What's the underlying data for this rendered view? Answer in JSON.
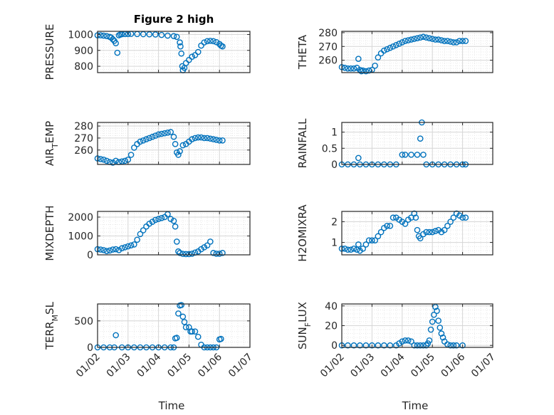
{
  "figure_title": "Figure 2 high",
  "colors": {
    "marker": "#0072BD",
    "grid": "#d6d6d6",
    "axis": "#262626"
  },
  "xaxis": {
    "label": "Time",
    "tick_labels": [
      "01/02",
      "01/03",
      "01/04",
      "01/05",
      "01/06",
      "01/07"
    ],
    "range": [
      0,
      5
    ]
  },
  "chart_data": [
    {
      "id": "pressure",
      "type": "scatter",
      "title": "Figure 2 high",
      "ylabel": "PRESSURE",
      "ylim": [
        760,
        1020
      ],
      "yticks": [
        800,
        900,
        1000
      ],
      "ytick_labels": [
        "800",
        "900",
        "1000"
      ],
      "grid": true,
      "marker": "circle-open",
      "x": [
        0,
        0.1,
        0.2,
        0.3,
        0.4,
        0.45,
        0.5,
        0.55,
        0.6,
        0.65,
        0.7,
        0.75,
        0.8,
        0.9,
        1.0,
        1.1,
        1.3,
        1.5,
        1.7,
        1.9,
        2.1,
        2.3,
        2.5,
        2.6,
        2.7,
        2.72,
        2.75,
        2.78,
        2.8,
        2.85,
        2.9,
        3.0,
        3.1,
        3.2,
        3.3,
        3.4,
        3.5,
        3.6,
        3.7,
        3.8,
        3.9,
        4.0,
        4.05,
        4.1
      ],
      "y": [
        995,
        995,
        993,
        990,
        985,
        980,
        970,
        960,
        945,
        885,
        995,
        1000,
        1002,
        1003,
        1003,
        1004,
        1003,
        1002,
        1001,
        1000,
        997,
        993,
        990,
        985,
        950,
        925,
        880,
        800,
        775,
        790,
        820,
        840,
        860,
        870,
        890,
        930,
        950,
        958,
        960,
        958,
        952,
        940,
        930,
        925
      ]
    },
    {
      "id": "theta",
      "type": "scatter",
      "ylabel": "THETA",
      "ylim": [
        251,
        281
      ],
      "yticks": [
        260,
        270,
        280
      ],
      "ytick_labels": [
        "260",
        "270",
        "280"
      ],
      "grid": true,
      "marker": "circle-open",
      "x": [
        0,
        0.1,
        0.2,
        0.3,
        0.4,
        0.5,
        0.55,
        0.6,
        0.65,
        0.7,
        0.8,
        0.9,
        1.0,
        1.1,
        1.2,
        1.3,
        1.4,
        1.5,
        1.6,
        1.7,
        1.8,
        1.9,
        2.0,
        2.1,
        2.2,
        2.3,
        2.4,
        2.5,
        2.6,
        2.7,
        2.8,
        2.9,
        3.0,
        3.1,
        3.2,
        3.3,
        3.4,
        3.5,
        3.6,
        3.7,
        3.8,
        3.9,
        4.0,
        4.1
      ],
      "y": [
        255,
        254.5,
        254,
        254,
        254,
        254.5,
        261,
        253,
        252,
        252.5,
        252,
        252.5,
        253,
        256,
        262,
        265,
        267,
        268,
        269,
        270,
        271,
        272,
        273,
        274,
        274.5,
        275,
        275.5,
        276,
        276.5,
        277,
        276.5,
        276,
        275.5,
        275,
        275,
        274.5,
        274,
        274,
        273.5,
        273,
        273,
        274,
        274,
        274
      ]
    },
    {
      "id": "air_temp",
      "type": "scatter",
      "ylabel": "AIR_TEMP",
      "ylim": [
        248,
        283
      ],
      "yticks": [
        260,
        270,
        280
      ],
      "ytick_labels": [
        "260",
        "270",
        "280"
      ],
      "grid": true,
      "marker": "circle-open",
      "x": [
        0,
        0.1,
        0.2,
        0.3,
        0.4,
        0.5,
        0.6,
        0.7,
        0.8,
        0.9,
        1.0,
        1.1,
        1.2,
        1.3,
        1.4,
        1.5,
        1.6,
        1.7,
        1.8,
        1.9,
        2.0,
        2.1,
        2.2,
        2.3,
        2.4,
        2.5,
        2.55,
        2.6,
        2.65,
        2.7,
        2.8,
        2.9,
        3.0,
        3.1,
        3.2,
        3.3,
        3.4,
        3.5,
        3.6,
        3.7,
        3.8,
        3.9,
        4.0,
        4.1
      ],
      "y": [
        253,
        252.5,
        252,
        251,
        250,
        249.5,
        251,
        250,
        250.5,
        251,
        252,
        256,
        262,
        265,
        267,
        268,
        269,
        270,
        271,
        272,
        273,
        273.5,
        274,
        274.5,
        275,
        271,
        265,
        258,
        256,
        259,
        264,
        265,
        267,
        269,
        270,
        270.5,
        270.5,
        270,
        270,
        269.5,
        269,
        268.5,
        268,
        268
      ]
    },
    {
      "id": "rainfall",
      "type": "scatter",
      "ylabel": "RAINFALL",
      "ylim": [
        0,
        1.3
      ],
      "yticks": [
        0,
        0.5,
        1
      ],
      "ytick_labels": [
        "0",
        "0.5",
        "1"
      ],
      "grid": true,
      "marker": "circle-open",
      "x": [
        0,
        0.2,
        0.4,
        0.55,
        0.6,
        0.8,
        1.0,
        1.2,
        1.4,
        1.6,
        1.8,
        2.0,
        2.1,
        2.3,
        2.5,
        2.6,
        2.65,
        2.7,
        2.8,
        3.0,
        3.2,
        3.4,
        3.6,
        3.8,
        4.0,
        4.1
      ],
      "y": [
        0,
        0,
        0,
        0.2,
        0,
        0,
        0,
        0,
        0,
        0,
        0,
        0.3,
        0.3,
        0.3,
        0.3,
        0.8,
        1.3,
        0.3,
        0,
        0,
        0,
        0,
        0,
        0,
        0,
        0
      ]
    },
    {
      "id": "mixdepth",
      "type": "scatter",
      "ylabel": "MIXDEPTH",
      "ylim": [
        0,
        2300
      ],
      "yticks": [
        0,
        1000,
        2000
      ],
      "ytick_labels": [
        "0",
        "1000",
        "2000"
      ],
      "grid": true,
      "marker": "circle-open",
      "x": [
        0,
        0.1,
        0.2,
        0.3,
        0.4,
        0.5,
        0.6,
        0.7,
        0.8,
        0.9,
        1.0,
        1.1,
        1.2,
        1.3,
        1.4,
        1.5,
        1.6,
        1.7,
        1.8,
        1.9,
        2.0,
        2.1,
        2.2,
        2.3,
        2.4,
        2.5,
        2.55,
        2.6,
        2.65,
        2.7,
        2.8,
        2.9,
        3.0,
        3.1,
        3.2,
        3.3,
        3.4,
        3.5,
        3.6,
        3.7,
        3.8,
        3.9,
        4.0,
        4.1
      ],
      "y": [
        300,
        280,
        250,
        200,
        230,
        280,
        300,
        250,
        350,
        400,
        450,
        500,
        550,
        800,
        1100,
        1300,
        1500,
        1650,
        1750,
        1850,
        1900,
        1950,
        2000,
        2150,
        1900,
        1800,
        1500,
        700,
        180,
        100,
        50,
        40,
        40,
        60,
        120,
        180,
        300,
        400,
        500,
        700,
        100,
        60,
        60,
        100
      ]
    },
    {
      "id": "h2omixra",
      "type": "scatter",
      "ylabel": "H2OMIXRA",
      "ylim": [
        0.4,
        2.5
      ],
      "yticks": [
        1,
        2
      ],
      "ytick_labels": [
        "1",
        "2"
      ],
      "grid": true,
      "marker": "circle-open",
      "x": [
        0,
        0.1,
        0.2,
        0.3,
        0.4,
        0.5,
        0.55,
        0.6,
        0.7,
        0.8,
        0.9,
        1.0,
        1.1,
        1.2,
        1.3,
        1.4,
        1.5,
        1.6,
        1.7,
        1.8,
        1.9,
        2.0,
        2.1,
        2.2,
        2.3,
        2.4,
        2.45,
        2.5,
        2.55,
        2.6,
        2.7,
        2.8,
        2.9,
        3.0,
        3.1,
        3.2,
        3.3,
        3.4,
        3.5,
        3.6,
        3.7,
        3.8,
        3.9,
        4.0,
        4.1
      ],
      "y": [
        0.7,
        0.7,
        0.65,
        0.65,
        0.7,
        0.65,
        0.9,
        0.6,
        0.7,
        0.9,
        1.1,
        1.1,
        1.1,
        1.3,
        1.5,
        1.7,
        1.8,
        1.8,
        2.2,
        2.2,
        2.1,
        2.0,
        1.9,
        2.1,
        2.2,
        2.4,
        2.2,
        1.6,
        1.3,
        1.2,
        1.4,
        1.5,
        1.5,
        1.5,
        1.55,
        1.6,
        1.5,
        1.6,
        1.8,
        2.0,
        2.2,
        2.4,
        2.3,
        2.2,
        2.2
      ]
    },
    {
      "id": "terr_msl",
      "type": "scatter",
      "ylabel": "TERR_MSL",
      "ylim": [
        0,
        820
      ],
      "yticks": [
        0,
        500
      ],
      "ytick_labels": [
        "0",
        "500"
      ],
      "grid": true,
      "marker": "circle-open",
      "x": [
        0,
        0.2,
        0.4,
        0.55,
        0.6,
        0.8,
        1.0,
        1.2,
        1.4,
        1.6,
        1.8,
        2.0,
        2.2,
        2.4,
        2.5,
        2.55,
        2.6,
        2.65,
        2.7,
        2.75,
        2.8,
        2.85,
        2.9,
        3.0,
        3.05,
        3.1,
        3.2,
        3.3,
        3.4,
        3.5,
        3.6,
        3.7,
        3.8,
        3.9,
        4.0,
        4.05
      ],
      "y": [
        0,
        0,
        0,
        0,
        230,
        0,
        0,
        0,
        0,
        0,
        0,
        0,
        0,
        0,
        0,
        170,
        180,
        640,
        790,
        800,
        580,
        480,
        380,
        380,
        300,
        300,
        300,
        200,
        50,
        0,
        0,
        0,
        0,
        0,
        150,
        160
      ]
    },
    {
      "id": "sun_flux",
      "type": "scatter",
      "ylabel": "SUN_FLUX",
      "ylim": [
        -2,
        42
      ],
      "yticks": [
        0,
        20,
        40
      ],
      "ytick_labels": [
        "0",
        "20",
        "40"
      ],
      "grid": true,
      "marker": "circle-open",
      "x": [
        0,
        0.2,
        0.4,
        0.6,
        0.8,
        1.0,
        1.2,
        1.4,
        1.6,
        1.8,
        1.9,
        2.0,
        2.1,
        2.2,
        2.3,
        2.4,
        2.5,
        2.6,
        2.7,
        2.8,
        2.85,
        2.9,
        2.95,
        3.0,
        3.05,
        3.1,
        3.15,
        3.2,
        3.25,
        3.3,
        3.35,
        3.4,
        3.5,
        3.6,
        3.7,
        3.8,
        4.0
      ],
      "y": [
        0,
        0,
        0,
        0,
        0,
        0,
        0,
        0,
        0,
        0,
        2,
        4,
        5,
        5,
        4,
        0,
        0,
        0,
        0,
        0,
        2,
        5,
        16,
        24,
        31,
        39,
        35,
        25,
        18,
        12,
        8,
        4,
        1,
        0,
        0,
        0,
        0
      ]
    }
  ],
  "ylabel_parts": {
    "air_temp": {
      "base": "AIR",
      "sub": "T",
      "rest": "EMP"
    },
    "terr_msl": {
      "base": "TERR",
      "sub": "M",
      "rest": "SL"
    },
    "sun_flux": {
      "base": "SUN",
      "sub": "F",
      "rest": "LUX"
    }
  }
}
